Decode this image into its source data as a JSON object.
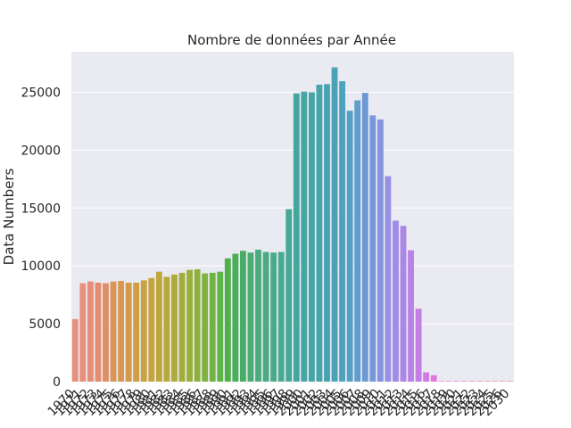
{
  "chart_data": {
    "type": "bar",
    "title": "Nombre de données par Année",
    "xlabel": "",
    "ylabel": "Data Numbers",
    "ylim": [
      0,
      28500
    ],
    "yticks": [
      0,
      5000,
      10000,
      15000,
      20000,
      25000
    ],
    "grid": true,
    "legend": "none",
    "categories": [
      "1970",
      "1971",
      "1972",
      "1973",
      "1974",
      "1975",
      "1976",
      "1977",
      "1978",
      "1979",
      "1980",
      "1981",
      "1982",
      "1983",
      "1984",
      "1985",
      "1986",
      "1987",
      "1988",
      "1989",
      "1990",
      "1991",
      "1992",
      "1993",
      "1994",
      "1995",
      "1996",
      "1997",
      "1998",
      "1999",
      "2000",
      "2001",
      "2002",
      "2003",
      "2004",
      "2005",
      "2006",
      "2007",
      "2008",
      "2009",
      "2010",
      "2011",
      "2012",
      "2013",
      "2014",
      "2015",
      "2016",
      "2017",
      "2018",
      "2019",
      "2020",
      "2021",
      "2022",
      "2023",
      "2024",
      "2025",
      "2026",
      "2030"
    ],
    "values": [
      5400,
      8500,
      8650,
      8550,
      8500,
      8650,
      8700,
      8550,
      8550,
      8750,
      8950,
      9500,
      9050,
      9250,
      9400,
      9650,
      9700,
      9350,
      9400,
      9500,
      10650,
      11050,
      11300,
      11150,
      11400,
      11200,
      11150,
      11200,
      14900,
      24900,
      25050,
      25000,
      25650,
      25700,
      27150,
      25950,
      23400,
      24300,
      24950,
      23000,
      22650,
      17750,
      13900,
      13450,
      11350,
      6300,
      800,
      550,
      50,
      50,
      50,
      50,
      50,
      50,
      50,
      50,
      50,
      50
    ],
    "colors": [
      "#e8907c",
      "#e8907c",
      "#e68d7a",
      "#e58c70",
      "#df8f63",
      "#d99458",
      "#d89850",
      "#d49a4a",
      "#cf9e45",
      "#c9a13f",
      "#c4a43c",
      "#bea63b",
      "#b7a839",
      "#adab3a",
      "#a2ad3a",
      "#98af3b",
      "#8db13c",
      "#7fb23e",
      "#6fb440",
      "#5db543",
      "#4fb04a",
      "#4cae5b",
      "#4aad67",
      "#4aad72",
      "#4aac7c",
      "#4aab84",
      "#4aab8b",
      "#4aa991",
      "#47a897",
      "#44a79d",
      "#46a6a2",
      "#45a5a6",
      "#46a4ab",
      "#48a3b1",
      "#4aa2b7",
      "#4fa1be",
      "#56a0c5",
      "#609dcc",
      "#6c99d3",
      "#7896da",
      "#8793e0",
      "#9691e3",
      "#a18ce5",
      "#ad87e6",
      "#b983e6",
      "#c47ee5",
      "#d17ae3",
      "#dd77dd",
      "#e577d5",
      "#e879cb",
      "#e87ac3",
      "#e77db9",
      "#e77fb1",
      "#e781a9",
      "#e783a1",
      "#e78598",
      "#e7878f",
      "#e78a86"
    ]
  }
}
